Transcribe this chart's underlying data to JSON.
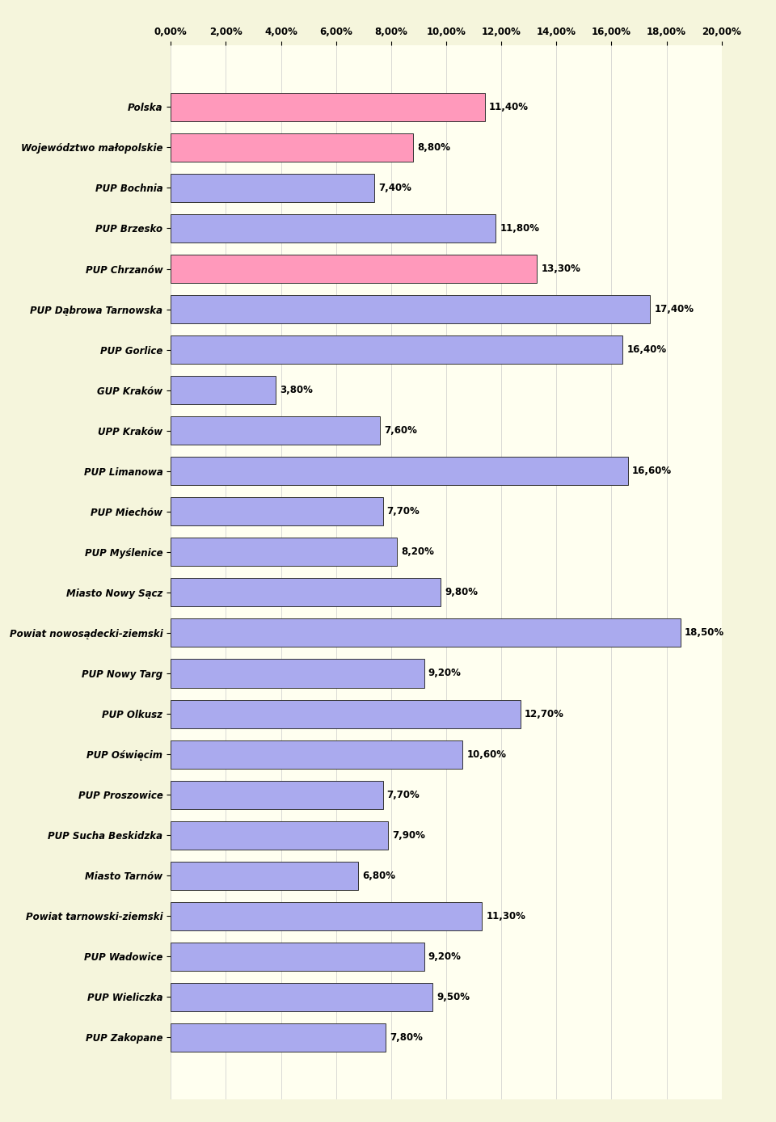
{
  "categories": [
    "Polska",
    "Województwo małopolskie",
    "PUP Bochnia",
    "PUP Brzesko",
    "PUP Chrzanów",
    "PUP Dąbrowa Tarnowska",
    "PUP Gorlice",
    "GUP Kraków",
    "UPP Kraków",
    "PUP Limanowa",
    "PUP Miechów",
    "PUP Myślenice",
    "Miasto Nowy Sącz",
    "Powiat nowosądecki-ziemski",
    "PUP Nowy Targ",
    "PUP Olkusz",
    "PUP Oświęcim",
    "PUP Proszowice",
    "PUP Sucha Beskidzka",
    "Miasto Tarnów",
    "Powiat tarnowski-ziemski",
    "PUP Wadowice",
    "PUP Wieliczka",
    "PUP Zakopane"
  ],
  "values": [
    11.4,
    8.8,
    7.4,
    11.8,
    13.3,
    17.4,
    16.4,
    3.8,
    7.6,
    16.6,
    7.7,
    8.2,
    9.8,
    18.5,
    9.2,
    12.7,
    10.6,
    7.7,
    7.9,
    6.8,
    11.3,
    9.2,
    9.5,
    7.8
  ],
  "labels": [
    "11,40%",
    "8,80%",
    "7,40%",
    "11,80%",
    "13,30%",
    "17,40%",
    "16,40%",
    "3,80%",
    "7,60%",
    "16,60%",
    "7,70%",
    "8,20%",
    "9,80%",
    "18,50%",
    "9,20%",
    "12,70%",
    "10,60%",
    "7,70%",
    "7,90%",
    "6,80%",
    "11,30%",
    "9,20%",
    "9,50%",
    "7,80%"
  ],
  "colors": [
    "#FF99BB",
    "#FF99BB",
    "#AAAAEE",
    "#AAAAEE",
    "#FF99BB",
    "#AAAAEE",
    "#AAAAEE",
    "#AAAAEE",
    "#AAAAEE",
    "#AAAAEE",
    "#AAAAEE",
    "#AAAAEE",
    "#AAAAEE",
    "#AAAAEE",
    "#AAAAEE",
    "#AAAAEE",
    "#AAAAEE",
    "#AAAAEE",
    "#AAAAEE",
    "#AAAAEE",
    "#AAAAEE",
    "#AAAAEE",
    "#AAAAEE",
    "#AAAAEE"
  ],
  "xlim": [
    0,
    20
  ],
  "xticks": [
    0.0,
    2.0,
    4.0,
    6.0,
    8.0,
    10.0,
    12.0,
    14.0,
    16.0,
    18.0,
    20.0
  ],
  "xtick_labels": [
    "0,00%",
    "2,00%",
    "4,00%",
    "6,00%",
    "8,00%",
    "10,00%",
    "12,00%",
    "14,00%",
    "16,00%",
    "18,00%",
    "20,00%"
  ],
  "background_color": "#F5F5DC",
  "plot_bg_color": "#FFFFF0",
  "bar_edge_color": "#333333",
  "grid_color": "#CCCCCC",
  "label_fontsize": 8.5,
  "tick_fontsize": 8.5,
  "italic_labels": true
}
